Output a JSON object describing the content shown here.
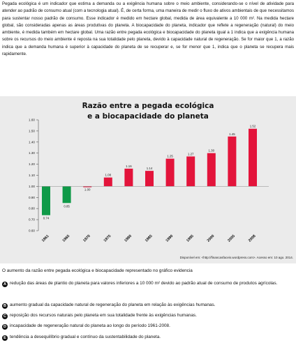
{
  "intro": {
    "text": "Pegada ecológica é um indicador que estima a demanda ou a exigência humana sobre o meio ambiente, considerando-se o nível de atividade para atender ao padrão de consumo atual (com a tecnologia atual). É, de certa forma, uma maneira de medir o fluxo de ativos ambientais de que necessitamos para sustentar nosso padrão de consumo. Esse indicador é medido em hectare global, medida de área equivalente a 10 000 m². Na medida hectare global, são consideradas apenas as áreas produtivas do planeta. A biocapacidade do planeta, indicador que reflete a regeneração (natural) do meio ambiente, é medida também em hectare global. Uma razão entre pegada ecológica e biocapacidade do planeta igual a 1 indica que a exigência humana sobre os recursos do meio ambiente é reposta na sua totalidade pelo planeta, devido à capacidade natural de regeneração. Se for maior que 1, a razão indica que a demanda humana é superior à capacidade do planeta de se recuperar e, se for menor que 1, indica que o planeta se recupera mais rapidamente."
  },
  "chart_data": {
    "type": "bar",
    "title_line1": "Razão entre a pegada ecológica",
    "title_line2": "e a biocapacidade do planeta",
    "categories": [
      "1961",
      "1965",
      "1970",
      "1975",
      "1980",
      "1985",
      "1990",
      "1995",
      "2000",
      "2005",
      "2008"
    ],
    "values": [
      0.74,
      0.85,
      1.0,
      1.08,
      1.16,
      1.14,
      1.25,
      1.27,
      1.3,
      1.45,
      1.52
    ],
    "value_labels": [
      "0.74",
      "0.85",
      "1.00",
      "1.08",
      "1.16",
      "1.14",
      "1.25",
      "1.27",
      "1.30",
      "1.45",
      "1.52"
    ],
    "baseline": 1.0,
    "ylim": [
      0.6,
      1.6
    ],
    "yticks": [
      0.6,
      0.7,
      0.8,
      0.9,
      1.0,
      1.1,
      1.2,
      1.3,
      1.4,
      1.5,
      1.6
    ],
    "ytick_labels": [
      "0.60",
      "0.70",
      "0.80",
      "0.90",
      "1.00",
      "1.10",
      "1.20",
      "1.30",
      "1.40",
      "1.50",
      "1.60"
    ],
    "xlabel": "",
    "ylabel": "",
    "grid": false,
    "colors": {
      "below": "#0f9a48",
      "above": "#e3143b"
    }
  },
  "source": "Disponível em: <http://financasfaceis.wordpress.com>. Acesso em: 10 ago. 2014.",
  "question": "O aumento da razão entre pegada ecológica e biocapacidade representado no gráfico evidencia",
  "options": [
    {
      "letter": "A",
      "text": "redução das áreas de plantio do planeta para valores inferiores a 10 000 m² devido ao padrão atual de consumo de produtos agrícolas."
    },
    {
      "letter": "B",
      "text": "aumento gradual da capacidade natural de regeneração do planeta em relação às exigências humanas."
    },
    {
      "letter": "C",
      "text": "reposição dos recursos naturais pelo planeta em sua totalidade frente às exigências humanas."
    },
    {
      "letter": "D",
      "text": "incapacidade de regeneração natural do planeta ao longo do período 1961-2008."
    },
    {
      "letter": "E",
      "text": "tendência a desequilíbrio gradual e contínuo da sustentabilidade do planeta."
    }
  ]
}
